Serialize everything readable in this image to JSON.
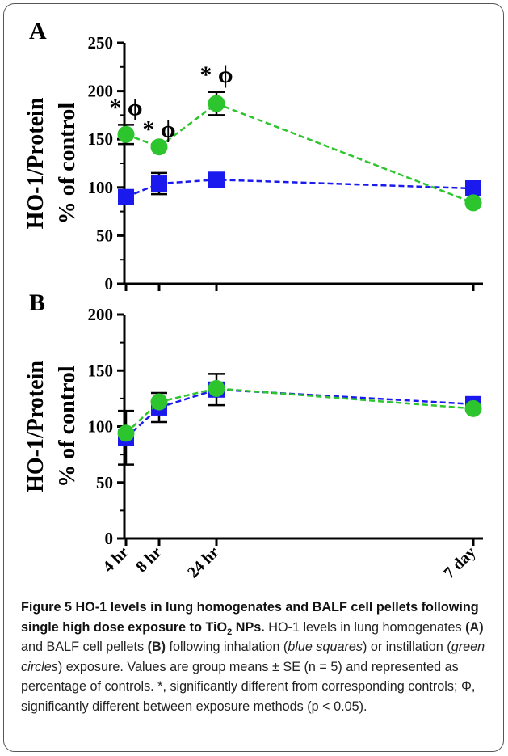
{
  "chart_data": [
    {
      "type": "line",
      "panel_label": "A",
      "ylabel_lines": [
        "HO-1/Protein",
        "% of control"
      ],
      "ylim": [
        0,
        250
      ],
      "yticks": [
        0,
        50,
        100,
        150,
        200,
        250
      ],
      "x": [
        "4 hr",
        "8 hr",
        "24 hr",
        "7 day"
      ],
      "series": [
        {
          "marker": "square",
          "color": "#1a1aee",
          "values": [
            90,
            104,
            108,
            99
          ],
          "errors": [
            null,
            11,
            null,
            null
          ]
        },
        {
          "marker": "circle",
          "color": "#2dc52d",
          "values": [
            155,
            142,
            187,
            84
          ],
          "errors": [
            10,
            null,
            12,
            null
          ]
        }
      ],
      "annotations": [
        {
          "x": "4 hr",
          "text": "* ϕ"
        },
        {
          "x": "8 hr",
          "text": "* ϕ"
        },
        {
          "x": "24 hr",
          "text": "* ϕ"
        }
      ]
    },
    {
      "type": "line",
      "panel_label": "B",
      "ylabel_lines": [
        "HO-1/Protein",
        "% of control"
      ],
      "ylim": [
        0,
        200
      ],
      "yticks": [
        0,
        50,
        100,
        150,
        200
      ],
      "x": [
        "4 hr",
        "8 hr",
        "24 hr",
        "7 day"
      ],
      "xtick_labels": [
        "4 hr",
        "8 hr",
        "24 hr",
        "7 day"
      ],
      "series": [
        {
          "marker": "square",
          "color": "#1a1aee",
          "values": [
            90,
            117,
            133,
            120
          ],
          "errors": [
            24,
            13,
            14,
            null
          ]
        },
        {
          "marker": "circle",
          "color": "#2dc52d",
          "values": [
            94,
            122,
            134,
            116
          ],
          "errors": [
            null,
            null,
            null,
            null
          ]
        }
      ]
    }
  ],
  "caption": {
    "title_pre": "Figure 5 HO-1 levels in lung homogenates and BALF cell pellets following single high dose exposure to TiO",
    "title_sub": "2",
    "title_post": " NPs.",
    "p1": " HO-1 levels in lung homogenates ",
    "p2": "(A)",
    "p3": " and BALF cell pellets ",
    "p4": "(B)",
    "p5": " following inhalation (",
    "p6": "blue squares",
    "p7": ") or instillation (",
    "p8": "green circles",
    "p9": ") exposure. Values are group means ± SE (n = 5) and represented as percentage of controls. *, significantly different from corresponding controls; Φ, significantly different between exposure methods (p < 0.05)."
  }
}
